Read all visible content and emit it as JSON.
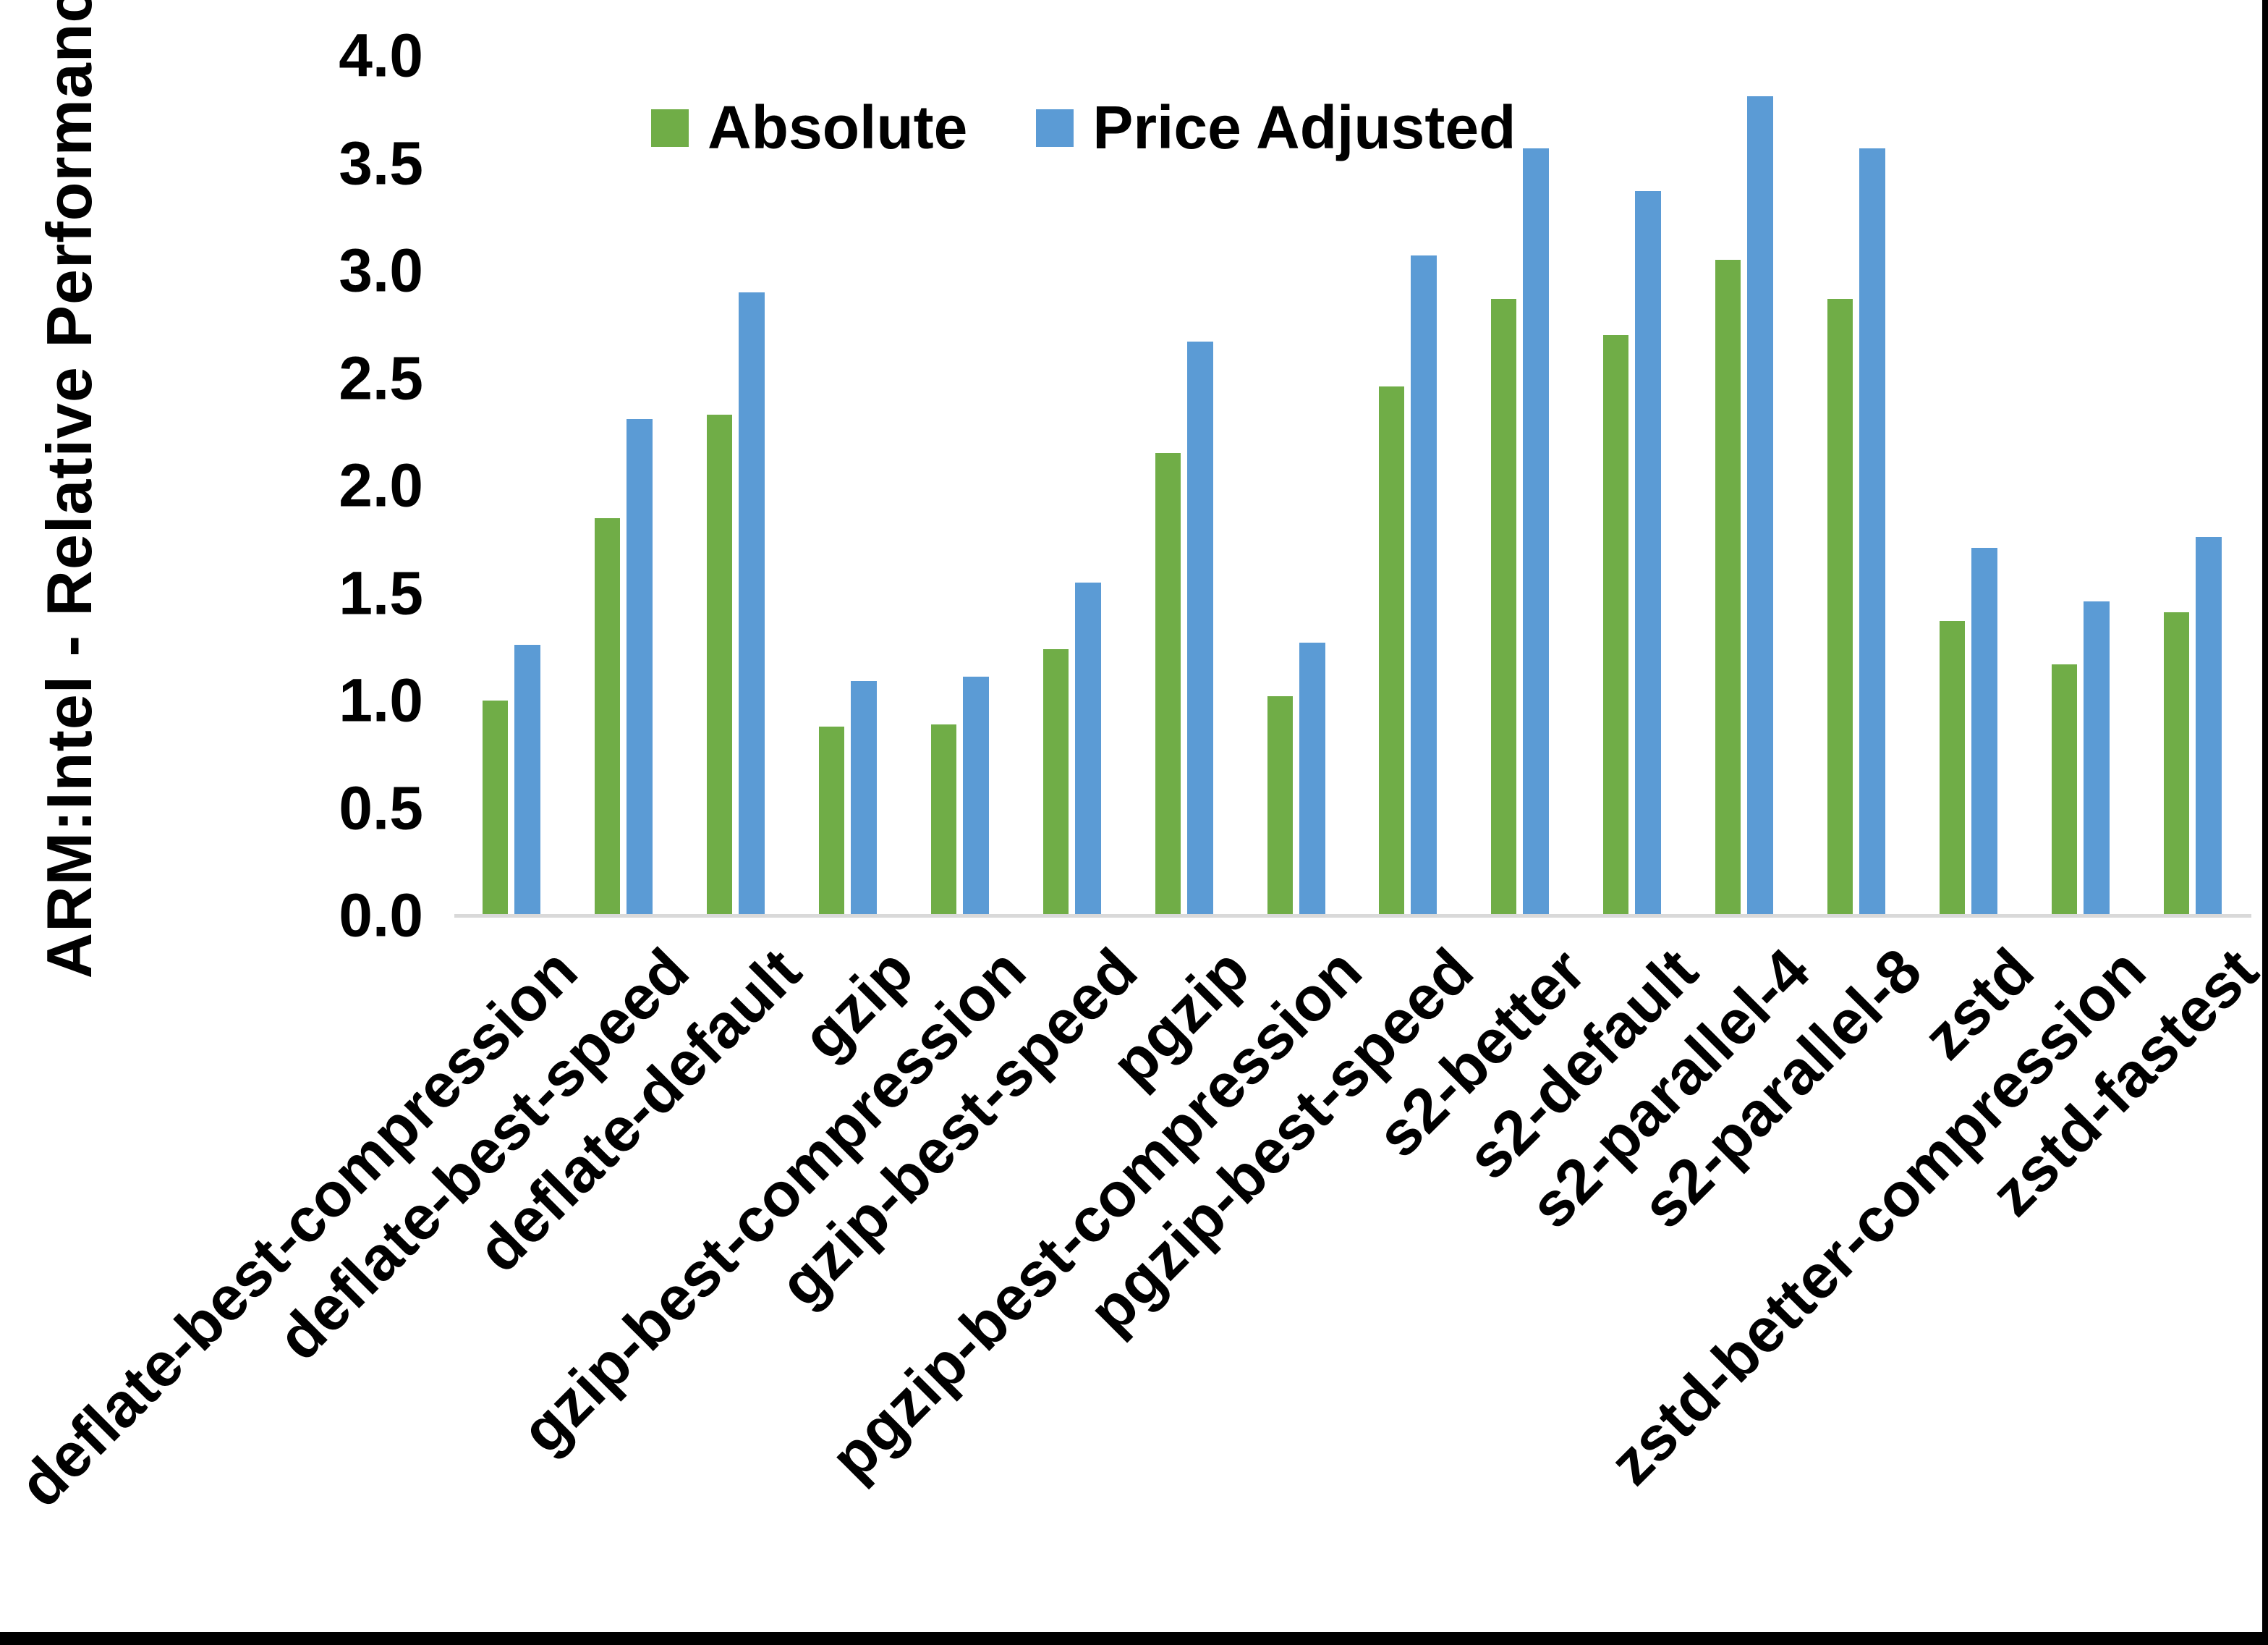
{
  "figure": {
    "y_axis_title": "ARM:Intel - Relative Performance",
    "background": "#ffffff",
    "axis_line_color": "#D9D9D9",
    "text_color": "#000000"
  },
  "chart_data": {
    "type": "bar",
    "title": "",
    "xlabel": "",
    "ylabel": "ARM:Intel - Relative Performance",
    "ylim": [
      0.0,
      4.0
    ],
    "ytick_step": 0.5,
    "yticks": [
      "4.0",
      "3.5",
      "3.0",
      "2.5",
      "2.0",
      "1.5",
      "1.0",
      "0.5",
      "0.0"
    ],
    "grid": false,
    "legend_position": "top-center",
    "x_label_rotation_deg": 45,
    "categories": [
      "deflate-best-compression",
      "deflate-best-speed",
      "deflate-default",
      "gzip",
      "gzip-best-compression",
      "gzip-best-speed",
      "pgzip",
      "pgzip-best-compression",
      "pgzip-best-speed",
      "s2-better",
      "s2-default",
      "s2-parallel-4",
      "s2-parallel-8",
      "zstd",
      "zstd-better-compression",
      "zstd-fastest"
    ],
    "series": [
      {
        "name": "Absolute",
        "color": "#70AD47",
        "values": [
          1.0,
          1.85,
          2.33,
          0.88,
          0.89,
          1.24,
          2.15,
          1.02,
          2.46,
          2.87,
          2.7,
          3.05,
          2.87,
          1.37,
          1.17,
          1.41
        ]
      },
      {
        "name": "Price Adjusted",
        "color": "#5B9BD5",
        "values": [
          1.26,
          2.31,
          2.9,
          1.09,
          1.11,
          1.55,
          2.67,
          1.27,
          3.07,
          3.57,
          3.37,
          3.81,
          3.57,
          1.71,
          1.46,
          1.76
        ]
      }
    ]
  }
}
